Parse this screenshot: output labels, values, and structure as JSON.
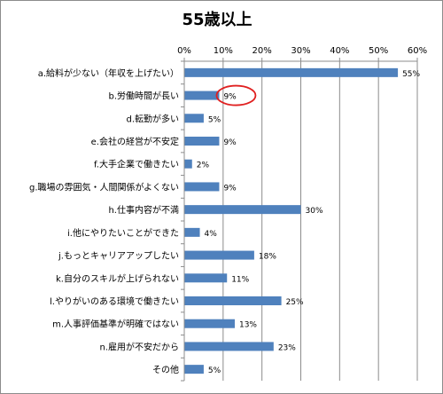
{
  "chart_data": {
    "type": "bar",
    "orientation": "horizontal",
    "title": "55歳以上",
    "xlabel": "",
    "ylabel": "",
    "xlim": [
      0,
      60
    ],
    "x_ticks": [
      "0%",
      "10%",
      "20%",
      "30%",
      "40%",
      "50%",
      "60%"
    ],
    "grid": true,
    "legend": "none",
    "categories": [
      "a.給料が少ない（年収を上げたい）",
      "b.労働時間が長い",
      "d.転勤が多い",
      "e.会社の経営が不安定",
      "f.大手企業で働きたい",
      "g.職場の雰囲気・人間関係がよくない",
      "h.仕事内容が不満",
      "i.他にやりたいことができた",
      "j.もっとキャリアアップしたい",
      "k.自分のスキルが上げられない",
      "l.やりがいのある環境で働きたい",
      "m.人事評価基準が明確ではない",
      "n.雇用が不安だから",
      "その他"
    ],
    "values": [
      55,
      9,
      5,
      9,
      2,
      9,
      30,
      4,
      18,
      11,
      25,
      13,
      23,
      5
    ],
    "value_labels": [
      "55%",
      "9%",
      "5%",
      "9%",
      "2%",
      "9%",
      "30%",
      "4%",
      "18%",
      "11%",
      "25%",
      "13%",
      "23%",
      "5%"
    ],
    "highlighted_category_index": 1,
    "colors": {
      "bar": "#4f81bd",
      "grid": "#8c8c8c",
      "axis": "#8c8c8c",
      "highlight": "#e02020"
    }
  }
}
